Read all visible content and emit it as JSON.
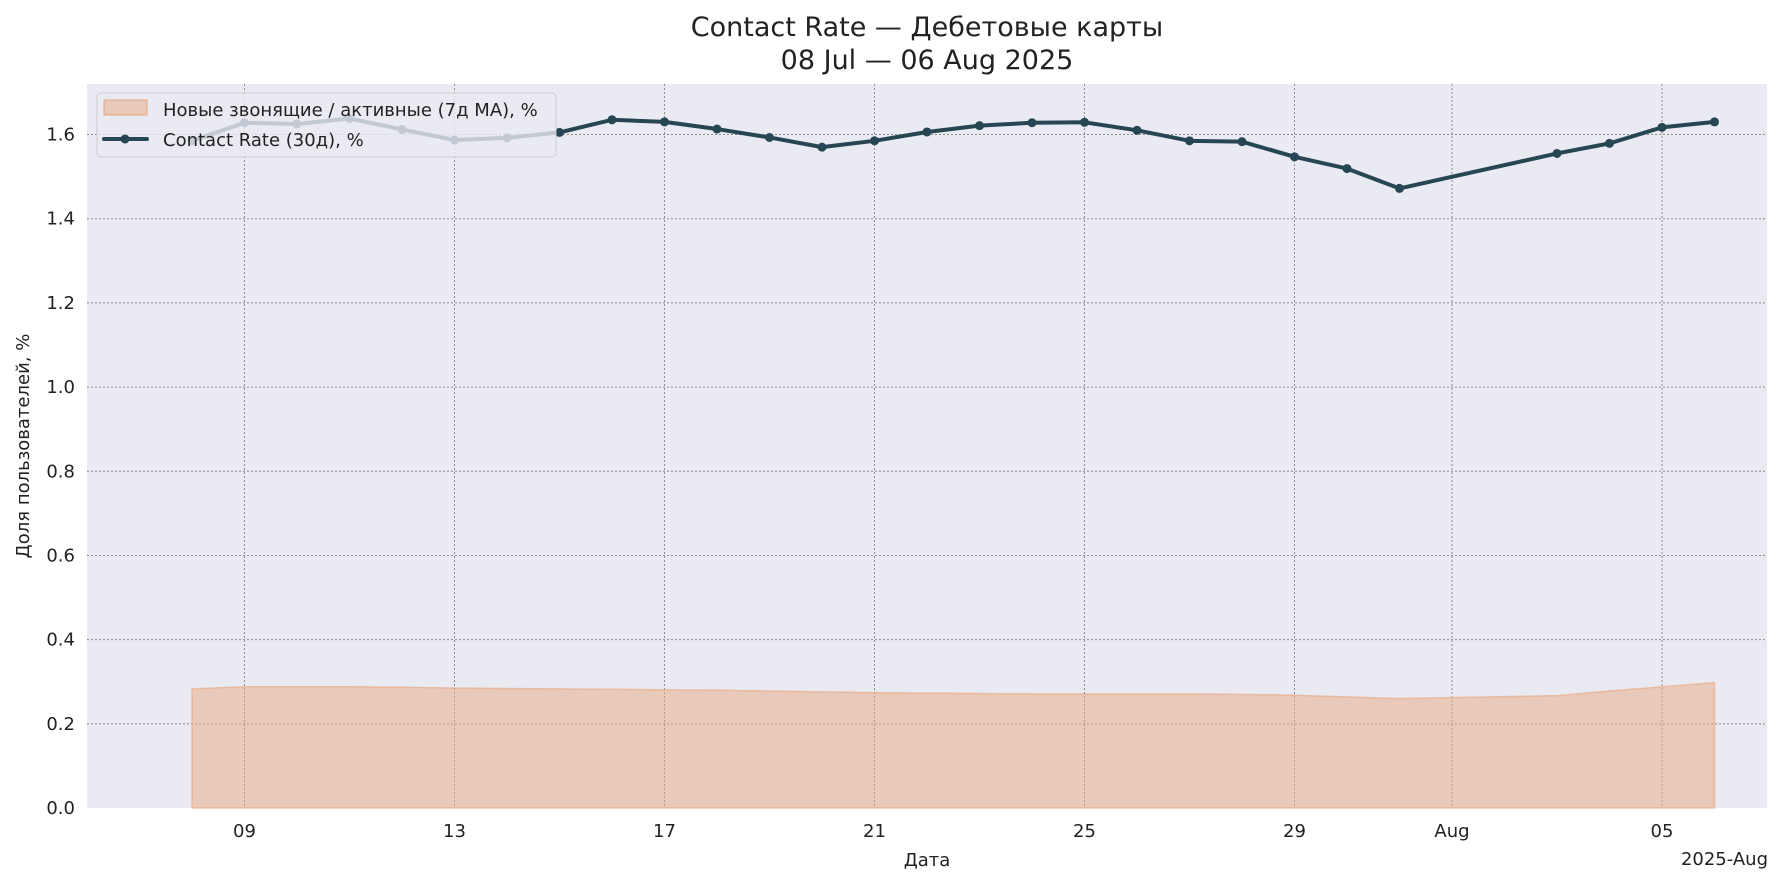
{
  "chart_data": {
    "type": "line",
    "title_line1": "Contact Rate — Дебетовые карты",
    "title_line2": "08 Jul — 06 Aug 2025",
    "xlabel": "Дата",
    "ylabel": "Доля пользователей, %",
    "x_offset_label": "2025-Aug",
    "ylim": [
      0,
      1.72
    ],
    "yticks": [
      0.0,
      0.2,
      0.4,
      0.6,
      0.8,
      1.0,
      1.2,
      1.4,
      1.6
    ],
    "ytick_labels": [
      "0.0",
      "0.2",
      "0.4",
      "0.6",
      "0.8",
      "1.0",
      "1.2",
      "1.4",
      "1.6"
    ],
    "xlim": [
      "2025-07-06",
      "2025-08-07"
    ],
    "xticks": [
      "2025-07-09",
      "2025-07-13",
      "2025-07-17",
      "2025-07-21",
      "2025-07-25",
      "2025-07-29",
      "2025-08-01",
      "2025-08-05"
    ],
    "xtick_labels": [
      "09",
      "13",
      "17",
      "21",
      "25",
      "29",
      "Aug",
      "05"
    ],
    "grid": true,
    "legend_position": "top-left",
    "series": [
      {
        "name": "Новые звонящие / активные (7д MA), %",
        "kind": "area",
        "color": "#e8a77f",
        "x": [
          "2025-07-08",
          "2025-07-09",
          "2025-07-10",
          "2025-07-11",
          "2025-07-12",
          "2025-07-13",
          "2025-07-14",
          "2025-07-15",
          "2025-07-16",
          "2025-07-17",
          "2025-07-18",
          "2025-07-19",
          "2025-07-20",
          "2025-07-21",
          "2025-07-22",
          "2025-07-23",
          "2025-07-24",
          "2025-07-25",
          "2025-07-26",
          "2025-07-27",
          "2025-07-28",
          "2025-07-29",
          "2025-07-30",
          "2025-07-31",
          "2025-08-03",
          "2025-08-04",
          "2025-08-05",
          "2025-08-06"
        ],
        "values": [
          0.283,
          0.288,
          0.288,
          0.288,
          0.287,
          0.285,
          0.284,
          0.283,
          0.282,
          0.281,
          0.28,
          0.278,
          0.276,
          0.274,
          0.273,
          0.272,
          0.271,
          0.271,
          0.271,
          0.271,
          0.27,
          0.268,
          0.264,
          0.26,
          0.267,
          0.278,
          0.288,
          0.298
        ]
      },
      {
        "name": "Contact Rate (30д), %",
        "kind": "line",
        "color": "#264653",
        "x": [
          "2025-07-08",
          "2025-07-09",
          "2025-07-10",
          "2025-07-11",
          "2025-07-12",
          "2025-07-13",
          "2025-07-14",
          "2025-07-15",
          "2025-07-16",
          "2025-07-17",
          "2025-07-18",
          "2025-07-19",
          "2025-07-20",
          "2025-07-21",
          "2025-07-22",
          "2025-07-23",
          "2025-07-24",
          "2025-07-25",
          "2025-07-26",
          "2025-07-27",
          "2025-07-28",
          "2025-07-29",
          "2025-07-30",
          "2025-07-31",
          "2025-08-03",
          "2025-08-04",
          "2025-08-05",
          "2025-08-06"
        ],
        "values": [
          1.585,
          1.628,
          1.625,
          1.638,
          1.612,
          1.587,
          1.592,
          1.605,
          1.635,
          1.63,
          1.613,
          1.593,
          1.57,
          1.585,
          1.606,
          1.621,
          1.628,
          1.629,
          1.61,
          1.585,
          1.583,
          1.547,
          1.519,
          1.472,
          1.555,
          1.579,
          1.617,
          1.63
        ]
      }
    ]
  }
}
